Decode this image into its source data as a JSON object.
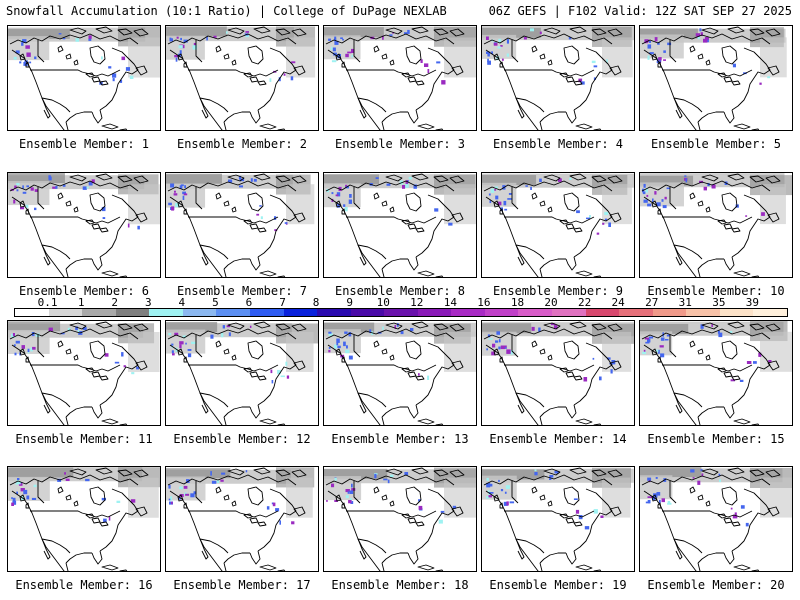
{
  "header": {
    "title": "Snowfall Accumulation (10:1 Ratio) | College of DuPage NEXLAB",
    "run_info": "06Z GEFS | F102 Valid: 12Z SAT SEP 27 2025"
  },
  "members": [
    {
      "label": "Ensemble Member: 1"
    },
    {
      "label": "Ensemble Member: 2"
    },
    {
      "label": "Ensemble Member: 3"
    },
    {
      "label": "Ensemble Member: 4"
    },
    {
      "label": "Ensemble Member: 5"
    },
    {
      "label": "Ensemble Member: 6"
    },
    {
      "label": "Ensemble Member: 7"
    },
    {
      "label": "Ensemble Member: 8"
    },
    {
      "label": "Ensemble Member: 9"
    },
    {
      "label": "Ensemble Member: 10"
    },
    {
      "label": "Ensemble Member: 11"
    },
    {
      "label": "Ensemble Member: 12"
    },
    {
      "label": "Ensemble Member: 13"
    },
    {
      "label": "Ensemble Member: 14"
    },
    {
      "label": "Ensemble Member: 15"
    },
    {
      "label": "Ensemble Member: 16"
    },
    {
      "label": "Ensemble Member: 17"
    },
    {
      "label": "Ensemble Member: 18"
    },
    {
      "label": "Ensemble Member: 19"
    },
    {
      "label": "Ensemble Member: 20"
    }
  ],
  "legend": {
    "labels": [
      "0.1",
      "1",
      "2",
      "3",
      "4",
      "5",
      "6",
      "7",
      "8",
      "9",
      "10",
      "12",
      "14",
      "16",
      "18",
      "20",
      "22",
      "24",
      "27",
      "31",
      "35",
      "39"
    ],
    "colors": [
      "#ffffff",
      "#d6d6d6",
      "#a9a9a9",
      "#7f7f7f",
      "#9ff2f2",
      "#8cb8f0",
      "#5c8ff2",
      "#2f5cf2",
      "#0a22dc",
      "#2a0ab0",
      "#4a0aa8",
      "#6a12ac",
      "#8a1ab8",
      "#a82ac4",
      "#c040c8",
      "#d85cc8",
      "#e072c0",
      "#d8486e",
      "#e6707a",
      "#f09a8a",
      "#f8c2a8",
      "#fce2c8",
      "#fff0dc"
    ]
  },
  "colors": {
    "background": "#ffffff",
    "snow_light": "#c8c8c8",
    "snow_medium": "#8c8c8c",
    "snow_blue": "#4466ee",
    "snow_purple": "#9a2ac0",
    "snow_cyan": "#9ff2f2"
  }
}
